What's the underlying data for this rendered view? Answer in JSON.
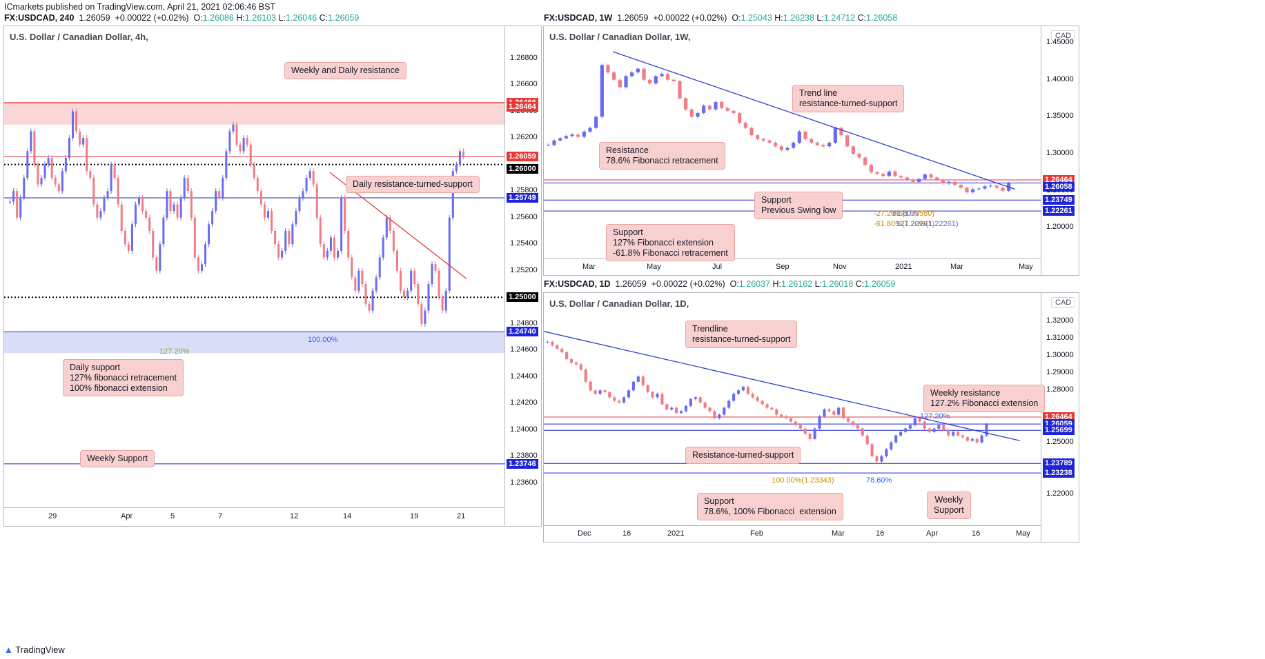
{
  "publisher": {
    "text": "ICmarkets published on TradingView.com, April 21, 2021 02:06:46 BST"
  },
  "footer": {
    "text": "TradingView"
  },
  "colors": {
    "up": "#6b6bf0",
    "down": "#f07d85",
    "resistance": "#e53935",
    "support": "#1e23d6",
    "trendline_red": "#e53935",
    "trendline_blue": "#2f3fd0"
  },
  "chart_data": [
    {
      "type": "candlestick",
      "symbol": "FX:USDCAD",
      "interval": "240",
      "header": {
        "sym": "FX:USDCAD, 240",
        "last": "1.26059",
        "change": "+0.00022 (+0.02%)",
        "o": "1.26086",
        "h": "1.26103",
        "l": "1.26046",
        "c": "1.26059"
      },
      "title": "U.S. Dollar / Canadian Dollar, 4h,",
      "currency": "CAD",
      "y_ticks": [
        "1.26800",
        "1.26600",
        "1.26400",
        "1.26200",
        "1.25800",
        "1.25600",
        "1.25400",
        "1.25200",
        "1.24800",
        "1.24600",
        "1.24400",
        "1.24200",
        "1.24000",
        "1.23800",
        "1.23600"
      ],
      "x_ticks": [
        "29",
        "Apr",
        "5",
        "7",
        "12",
        "14",
        "19",
        "21"
      ],
      "ylim": [
        1.2346,
        1.27
      ],
      "price_tags": [
        {
          "label": "1.26466",
          "color": "#e53935",
          "value": 1.26466
        },
        {
          "label": "1.26464",
          "color": "#e53935",
          "value": 1.26464
        },
        {
          "label": "1.26059",
          "color": "#e53935",
          "value": 1.26059
        },
        {
          "label": "1.26000",
          "color": "#000000",
          "value": 1.26
        },
        {
          "label": "1.25749",
          "color": "#1e23d6",
          "value": 1.25749
        },
        {
          "label": "1.25000",
          "color": "#000000",
          "value": 1.25
        },
        {
          "label": "1.24740",
          "color": "#1e23d6",
          "value": 1.2474
        },
        {
          "label": "1.23746",
          "color": "#1e23d6",
          "value": 1.23746
        }
      ],
      "fib_labels": [
        {
          "text": "100.00%",
          "color": "#2962ff"
        },
        {
          "text": "127.20%",
          "color": "#7cb342"
        }
      ],
      "annotations": [
        {
          "text": "Weekly and Daily resistance"
        },
        {
          "text": "Daily resistance-turned-support"
        },
        {
          "text": "Daily support\n127% fibonacci retracement\n100% fibonacci extension"
        },
        {
          "text": "Weekly Support"
        }
      ],
      "closes": [
        1.2572,
        1.258,
        1.256,
        1.2575,
        1.259,
        1.261,
        1.2625,
        1.26,
        1.2585,
        1.259,
        1.26,
        1.2605,
        1.259,
        1.2585,
        1.258,
        1.2595,
        1.2605,
        1.262,
        1.264,
        1.2625,
        1.2615,
        1.262,
        1.2595,
        1.259,
        1.257,
        1.256,
        1.2565,
        1.2575,
        1.258,
        1.26,
        1.259,
        1.257,
        1.255,
        1.254,
        1.2535,
        1.2555,
        1.257,
        1.2575,
        1.2565,
        1.256,
        1.255,
        1.253,
        1.252,
        1.254,
        1.256,
        1.258,
        1.2565,
        1.257,
        1.256,
        1.2575,
        1.259,
        1.258,
        1.256,
        1.253,
        1.252,
        1.2525,
        1.254,
        1.2555,
        1.2565,
        1.258,
        1.2575,
        1.259,
        1.261,
        1.2625,
        1.263,
        1.2615,
        1.261,
        1.262,
        1.2615,
        1.26,
        1.259,
        1.258,
        1.257,
        1.256,
        1.2565,
        1.255,
        1.254,
        1.253,
        1.2535,
        1.255,
        1.254,
        1.2555,
        1.2565,
        1.2575,
        1.258,
        1.259,
        1.2595,
        1.2585,
        1.256,
        1.254,
        1.253,
        1.2535,
        1.2545,
        1.253,
        1.2535,
        1.2575,
        1.255,
        1.253,
        1.2515,
        1.2505,
        1.252,
        1.251,
        1.2495,
        1.249,
        1.2505,
        1.2515,
        1.253,
        1.2545,
        1.256,
        1.255,
        1.2535,
        1.252,
        1.2505,
        1.25,
        1.2505,
        1.252,
        1.251,
        1.2495,
        1.248,
        1.249,
        1.251,
        1.2525,
        1.252,
        1.25,
        1.249,
        1.2505,
        1.256,
        1.2595,
        1.26,
        1.261,
        1.2606
      ]
    },
    {
      "type": "candlestick",
      "symbol": "FX:USDCAD",
      "interval": "1W",
      "header": {
        "sym": "FX:USDCAD, 1W",
        "last": "1.26059",
        "change": "+0.00022 (+0.02%)",
        "o": "1.25043",
        "h": "1.26238",
        "l": "1.24712",
        "c": "1.26058"
      },
      "title": "U.S. Dollar / Canadian Dollar, 1W,",
      "currency": "CAD",
      "y_ticks": [
        "1.45000",
        "1.40000",
        "1.35000",
        "1.30000",
        "1.25000",
        "1.20000"
      ],
      "x_ticks": [
        "Mar",
        "May",
        "Jul",
        "Sep",
        "Nov",
        "2021",
        "Mar",
        "May"
      ],
      "ylim": [
        1.165,
        1.465
      ],
      "price_tags": [
        {
          "label": "1.26464",
          "color": "#e53935",
          "value": 1.26464
        },
        {
          "label": "1.26058",
          "color": "#1e23d6",
          "value": 1.26058
        },
        {
          "label": "1.23749",
          "color": "#1e23d6",
          "value": 1.23749
        },
        {
          "label": "1.22261",
          "color": "#1e23d6",
          "value": 1.22261
        }
      ],
      "fib_labels": [
        {
          "text": "-27.20%(1.23580)"
        },
        {
          "text": "61.80%"
        },
        {
          "text": "-61.80%(1.22261)"
        },
        {
          "text": "127.20%(1.22261)"
        }
      ],
      "annotations": [
        {
          "text": "Trend line\nresistance-turned-support"
        },
        {
          "text": "Resistance\n78.6% Fibonacci retracement"
        },
        {
          "text": "Support\nPrevious Swing low"
        },
        {
          "text": "Support\n127% Fibonacci extension\n-61.8% Fibonacci retracement"
        }
      ],
      "closes": [
        1.312,
        1.318,
        1.321,
        1.324,
        1.326,
        1.323,
        1.33,
        1.335,
        1.35,
        1.42,
        1.41,
        1.4,
        1.39,
        1.405,
        1.41,
        1.415,
        1.4,
        1.395,
        1.405,
        1.408,
        1.4,
        1.398,
        1.375,
        1.36,
        1.35,
        1.355,
        1.365,
        1.36,
        1.37,
        1.362,
        1.358,
        1.355,
        1.342,
        1.335,
        1.325,
        1.32,
        1.318,
        1.315,
        1.31,
        1.305,
        1.308,
        1.315,
        1.33,
        1.32,
        1.315,
        1.312,
        1.31,
        1.315,
        1.335,
        1.325,
        1.31,
        1.3,
        1.295,
        1.285,
        1.275,
        1.273,
        1.27,
        1.276,
        1.27,
        1.268,
        1.265,
        1.262,
        1.266,
        1.272,
        1.268,
        1.265,
        1.26,
        1.262,
        1.258,
        1.254,
        1.248,
        1.252,
        1.253,
        1.256,
        1.257,
        1.254,
        1.25,
        1.2604
      ]
    },
    {
      "type": "candlestick",
      "symbol": "FX:USDCAD",
      "interval": "1D",
      "header": {
        "sym": "FX:USDCAD, 1D",
        "last": "1.26059",
        "change": "+0.00022 (+0.02%)",
        "o": "1.26037",
        "h": "1.26162",
        "l": "1.26018",
        "c": "1.26059"
      },
      "title": "U.S. Dollar / Canadian Dollar, 1D,",
      "currency": "CAD",
      "y_ticks": [
        "1.32000",
        "1.31000",
        "1.30000",
        "1.29000",
        "1.28000",
        "1.25000",
        "1.22000"
      ],
      "x_ticks": [
        "Dec",
        "16",
        "2021",
        "Feb",
        "Mar",
        "16",
        "Apr",
        "16",
        "May"
      ],
      "ylim": [
        1.205,
        1.333
      ],
      "price_tags": [
        {
          "label": "1.26464",
          "color": "#e53935",
          "value": 1.26464
        },
        {
          "label": "1.26059",
          "color": "#1e23d6",
          "value": 1.26059
        },
        {
          "label": "1.25699",
          "color": "#1e23d6",
          "value": 1.25699
        },
        {
          "label": "1.23789",
          "color": "#1e23d6",
          "value": 1.23789
        },
        {
          "label": "1.23238",
          "color": "#1e23d6",
          "value": 1.23238
        }
      ],
      "fib_labels": [
        {
          "text": "127.20%"
        },
        {
          "text": "100.00%(1.23343)"
        },
        {
          "text": "78.60%"
        }
      ],
      "annotations": [
        {
          "text": "Trendline\nresistance-turned-support"
        },
        {
          "text": "Weekly resistance\n127.2% Fibonacci extension"
        },
        {
          "text": "Resistance-turned-support"
        },
        {
          "text": "Support\n78.6%, 100% Fibonacci  extension"
        },
        {
          "text": "Weekly\nSupport"
        }
      ],
      "closes": [
        1.308,
        1.306,
        1.304,
        1.302,
        1.298,
        1.296,
        1.295,
        1.292,
        1.285,
        1.28,
        1.278,
        1.28,
        1.279,
        1.276,
        1.274,
        1.273,
        1.276,
        1.28,
        1.285,
        1.288,
        1.283,
        1.279,
        1.276,
        1.278,
        1.272,
        1.269,
        1.27,
        1.267,
        1.268,
        1.271,
        1.275,
        1.276,
        1.273,
        1.27,
        1.268,
        1.264,
        1.266,
        1.27,
        1.274,
        1.278,
        1.28,
        1.282,
        1.278,
        1.276,
        1.274,
        1.272,
        1.27,
        1.269,
        1.266,
        1.265,
        1.264,
        1.262,
        1.26,
        1.258,
        1.255,
        1.252,
        1.258,
        1.265,
        1.269,
        1.268,
        1.266,
        1.27,
        1.264,
        1.262,
        1.26,
        1.258,
        1.254,
        1.249,
        1.242,
        1.239,
        1.242,
        1.246,
        1.25,
        1.254,
        1.256,
        1.258,
        1.26,
        1.264,
        1.262,
        1.258,
        1.256,
        1.258,
        1.26,
        1.257,
        1.254,
        1.256,
        1.254,
        1.253,
        1.251,
        1.252,
        1.25,
        1.254,
        1.2604
      ]
    }
  ]
}
